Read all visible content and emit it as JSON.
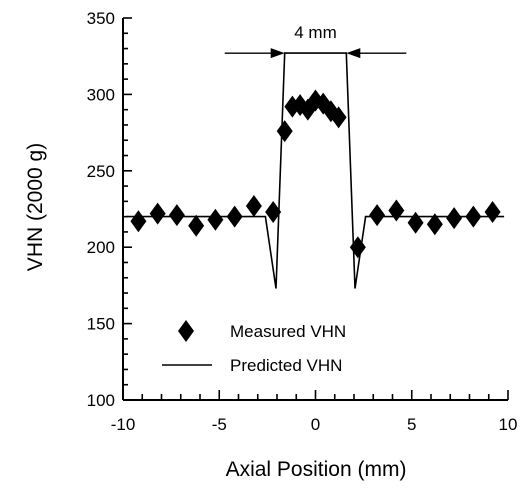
{
  "chart_data": {
    "type": "scatter",
    "title": "",
    "xlabel": "Axial Position (mm)",
    "ylabel": "VHN (2000 g)",
    "xlim": [
      -10,
      10
    ],
    "ylim": [
      100,
      350
    ],
    "xticks": [
      -10,
      -5,
      0,
      5,
      10
    ],
    "yticks": [
      100,
      150,
      200,
      250,
      300,
      350
    ],
    "grid": false,
    "legend_position": "lower-center",
    "annotation": {
      "text": "4 mm",
      "x_from": -1.6,
      "x_to": 1.6,
      "y": 327
    },
    "series": [
      {
        "name": "Measured VHN",
        "kind": "scatter",
        "marker": "diamond",
        "color": "#000000",
        "points": [
          {
            "x": -9.2,
            "y": 217
          },
          {
            "x": -8.2,
            "y": 222
          },
          {
            "x": -7.2,
            "y": 221
          },
          {
            "x": -6.2,
            "y": 214
          },
          {
            "x": -5.2,
            "y": 218
          },
          {
            "x": -4.2,
            "y": 220
          },
          {
            "x": -3.2,
            "y": 227
          },
          {
            "x": -2.2,
            "y": 223
          },
          {
            "x": -1.6,
            "y": 276
          },
          {
            "x": -1.2,
            "y": 292
          },
          {
            "x": -0.8,
            "y": 293
          },
          {
            "x": -0.4,
            "y": 290
          },
          {
            "x": 0.0,
            "y": 296
          },
          {
            "x": 0.4,
            "y": 294
          },
          {
            "x": 0.8,
            "y": 289
          },
          {
            "x": 1.2,
            "y": 285
          },
          {
            "x": 2.2,
            "y": 200
          },
          {
            "x": 3.2,
            "y": 221
          },
          {
            "x": 4.2,
            "y": 224
          },
          {
            "x": 5.2,
            "y": 216
          },
          {
            "x": 6.2,
            "y": 215
          },
          {
            "x": 7.2,
            "y": 219
          },
          {
            "x": 8.2,
            "y": 220
          },
          {
            "x": 9.2,
            "y": 223
          }
        ]
      },
      {
        "name": "Predicted VHN",
        "kind": "line",
        "color": "#000000",
        "points": [
          {
            "x": -9.8,
            "y": 220
          },
          {
            "x": -2.6,
            "y": 220
          },
          {
            "x": -2.05,
            "y": 173
          },
          {
            "x": -1.6,
            "y": 327
          },
          {
            "x": 1.6,
            "y": 327
          },
          {
            "x": 2.05,
            "y": 173
          },
          {
            "x": 2.6,
            "y": 220
          },
          {
            "x": 9.8,
            "y": 220
          }
        ]
      }
    ]
  }
}
